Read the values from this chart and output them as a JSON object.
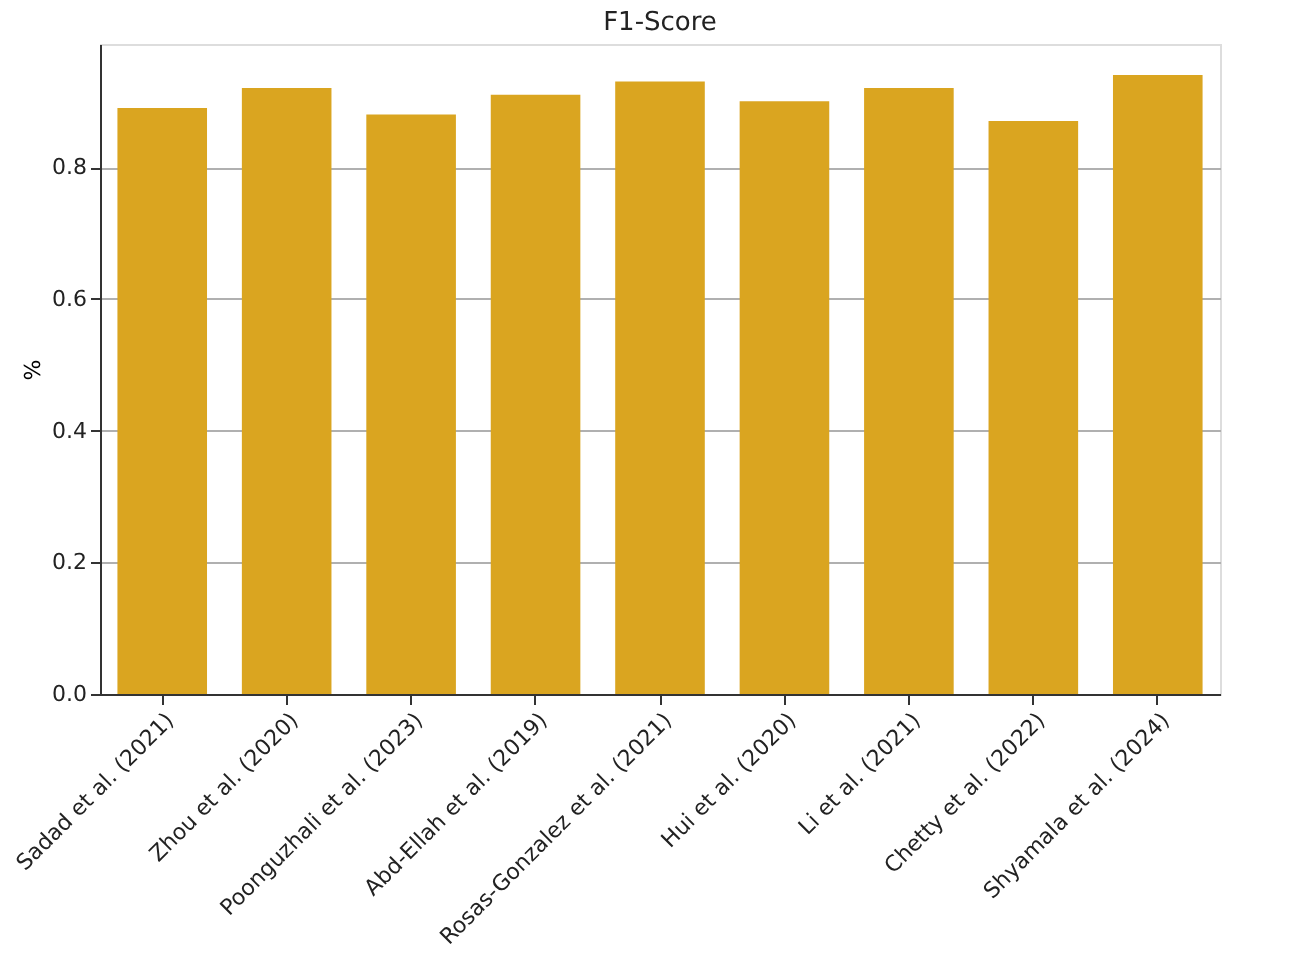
{
  "chart_data": {
    "type": "bar",
    "title": "F1-Score",
    "ylabel": "%",
    "categories": [
      "Sadad et al. (2021)",
      "Zhou et al. (2020)",
      "Poonguzhali et al. (2023)",
      "Abd-Ellah et al. (2019)",
      "Rosas-Gonzalez et al. (2021)",
      "Hui et al. (2020)",
      "Li et al. (2021)",
      "Chetty et al. (2022)",
      "Shyamala et al. (2024)"
    ],
    "values": [
      0.89,
      0.92,
      0.88,
      0.91,
      0.93,
      0.9,
      0.92,
      0.87,
      0.94
    ],
    "color": "#daa520",
    "ylim": [
      0,
      0.987
    ],
    "yticks": [
      {
        "value": 0,
        "label": "0.0"
      },
      {
        "value": 0.2,
        "label": "0.2"
      },
      {
        "value": 0.4,
        "label": "0.4"
      },
      {
        "value": 0.6,
        "label": "0.6"
      },
      {
        "value": 0.8,
        "label": "0.8"
      }
    ],
    "grid": "y"
  }
}
